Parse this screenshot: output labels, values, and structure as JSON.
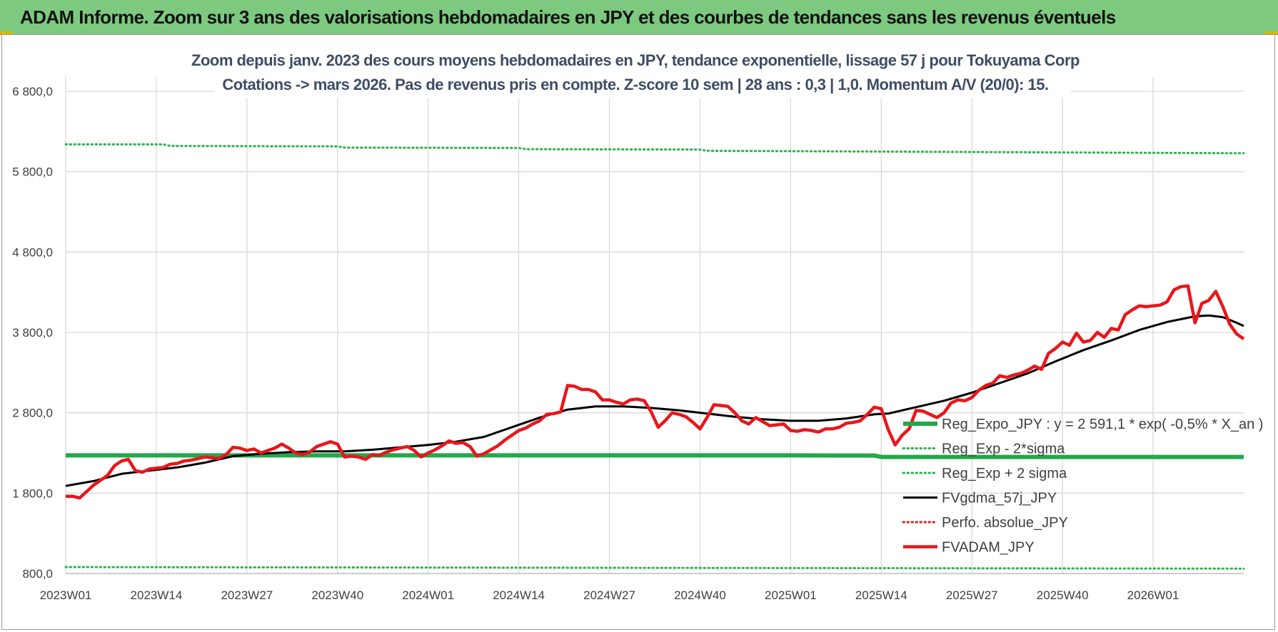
{
  "banner": {
    "title": "ADAM Informe. Zoom sur 3 ans des valorisations hebdomadaires en JPY et des courbes de tendances sans les revenus éventuels"
  },
  "colors": {
    "banner_bg": "#7cc97f",
    "reg_expo": "#22a84b",
    "sigma_bands": "#2db34f",
    "fvgdma": "#000000",
    "perfo": "#e0211c",
    "fvadam": "#e8161b",
    "title_text": "#3e4d66",
    "axis_text": "#404040",
    "grid": "#d9d9d9"
  },
  "chart_data": {
    "type": "line",
    "title": "Zoom depuis janv. 2023 des cours moyens hebdomadaires en JPY, tendance exponentielle, lissage 57 j pour Tokuyama Corp",
    "subtitle": "Cotations -> mars 2026. Pas de revenus pris en compte. Z-score 10 sem | 28 ans : 0,3 | 1,0. Momentum A/V (20/0): 15.",
    "ylim": [
      800,
      6800
    ],
    "yticks": [
      "800,0",
      "1 800,0",
      "2 800,0",
      "3 800,0",
      "4 800,0",
      "5 800,0",
      "6 800,0"
    ],
    "ytick_values": [
      800,
      1800,
      2800,
      3800,
      4800,
      5800,
      6800
    ],
    "xticks": [
      "2023W01",
      "2023W14",
      "2023W27",
      "2023W40",
      "2024W01",
      "2024W14",
      "2024W27",
      "2024W40",
      "2025W01",
      "2025W14",
      "2025W27",
      "2025W40",
      "2026W01"
    ],
    "xtick_weeks": [
      0,
      13,
      26,
      39,
      52,
      65,
      78,
      91,
      104,
      117,
      130,
      143,
      156
    ],
    "x_weeks_last": 169,
    "grid": true,
    "legend_position": "right",
    "series": [
      {
        "name": "Reg_Expo_JPY : y = 2 591,1 * exp( -0,5% *  X_an )",
        "style": "solid-thick",
        "color": "#22a84b",
        "points": [
          [
            0,
            2270
          ],
          [
            52,
            2270
          ],
          [
            104,
            2270
          ],
          [
            116,
            2268
          ],
          [
            117,
            2250
          ],
          [
            169,
            2250
          ]
        ]
      },
      {
        "name": "Reg_Exp - 2*sigma",
        "style": "dotted",
        "color": "#2db34f",
        "points": [
          [
            0,
            880
          ],
          [
            169,
            860
          ]
        ]
      },
      {
        "name": "Reg_Exp + 2 sigma",
        "style": "dotted",
        "color": "#2db34f",
        "points": [
          [
            0,
            6140
          ],
          [
            14,
            6140
          ],
          [
            15,
            6120
          ],
          [
            39,
            6115
          ],
          [
            40,
            6100
          ],
          [
            65,
            6095
          ],
          [
            66,
            6080
          ],
          [
            91,
            6075
          ],
          [
            92,
            6060
          ],
          [
            130,
            6045
          ],
          [
            169,
            6030
          ]
        ]
      },
      {
        "name": "FVgdma_57j_JPY",
        "style": "solid",
        "color": "#000000",
        "points": [
          [
            0,
            1890
          ],
          [
            4,
            1950
          ],
          [
            8,
            2040
          ],
          [
            12,
            2080
          ],
          [
            16,
            2120
          ],
          [
            20,
            2180
          ],
          [
            24,
            2260
          ],
          [
            28,
            2290
          ],
          [
            32,
            2310
          ],
          [
            36,
            2320
          ],
          [
            40,
            2320
          ],
          [
            44,
            2340
          ],
          [
            48,
            2370
          ],
          [
            52,
            2400
          ],
          [
            56,
            2440
          ],
          [
            60,
            2500
          ],
          [
            64,
            2620
          ],
          [
            68,
            2740
          ],
          [
            72,
            2840
          ],
          [
            76,
            2880
          ],
          [
            80,
            2880
          ],
          [
            84,
            2860
          ],
          [
            88,
            2830
          ],
          [
            92,
            2790
          ],
          [
            96,
            2750
          ],
          [
            100,
            2720
          ],
          [
            104,
            2700
          ],
          [
            108,
            2700
          ],
          [
            112,
            2730
          ],
          [
            116,
            2780
          ],
          [
            118,
            2790
          ],
          [
            122,
            2870
          ],
          [
            126,
            2950
          ],
          [
            130,
            3050
          ],
          [
            134,
            3170
          ],
          [
            138,
            3290
          ],
          [
            142,
            3440
          ],
          [
            146,
            3580
          ],
          [
            150,
            3700
          ],
          [
            154,
            3830
          ],
          [
            158,
            3930
          ],
          [
            162,
            4000
          ],
          [
            164,
            4010
          ],
          [
            166,
            3990
          ],
          [
            168,
            3920
          ],
          [
            169,
            3880
          ]
        ]
      },
      {
        "name": "Perfo. absolue_JPY",
        "style": "dotted",
        "color": "#e0211c",
        "points": []
      },
      {
        "name": "FVADAM_JPY",
        "style": "solid-thick",
        "color": "#e8161b",
        "points": [
          [
            0,
            1760
          ],
          [
            1,
            1760
          ],
          [
            2,
            1740
          ],
          [
            3,
            1820
          ],
          [
            4,
            1900
          ],
          [
            5,
            1960
          ],
          [
            6,
            2020
          ],
          [
            7,
            2140
          ],
          [
            8,
            2200
          ],
          [
            9,
            2220
          ],
          [
            10,
            2080
          ],
          [
            11,
            2060
          ],
          [
            12,
            2100
          ],
          [
            13,
            2110
          ],
          [
            14,
            2120
          ],
          [
            15,
            2160
          ],
          [
            16,
            2170
          ],
          [
            17,
            2200
          ],
          [
            18,
            2210
          ],
          [
            19,
            2230
          ],
          [
            20,
            2250
          ],
          [
            21,
            2240
          ],
          [
            22,
            2230
          ],
          [
            23,
            2280
          ],
          [
            24,
            2370
          ],
          [
            25,
            2360
          ],
          [
            26,
            2330
          ],
          [
            27,
            2350
          ],
          [
            28,
            2300
          ],
          [
            29,
            2330
          ],
          [
            30,
            2360
          ],
          [
            31,
            2410
          ],
          [
            32,
            2360
          ],
          [
            33,
            2300
          ],
          [
            34,
            2280
          ],
          [
            35,
            2310
          ],
          [
            36,
            2380
          ],
          [
            37,
            2410
          ],
          [
            38,
            2440
          ],
          [
            39,
            2410
          ],
          [
            40,
            2250
          ],
          [
            41,
            2260
          ],
          [
            42,
            2250
          ],
          [
            43,
            2220
          ],
          [
            44,
            2280
          ],
          [
            45,
            2270
          ],
          [
            46,
            2310
          ],
          [
            47,
            2340
          ],
          [
            48,
            2360
          ],
          [
            49,
            2380
          ],
          [
            50,
            2330
          ],
          [
            51,
            2250
          ],
          [
            52,
            2300
          ],
          [
            53,
            2340
          ],
          [
            54,
            2390
          ],
          [
            55,
            2450
          ],
          [
            56,
            2420
          ],
          [
            57,
            2430
          ],
          [
            58,
            2380
          ],
          [
            59,
            2260
          ],
          [
            60,
            2290
          ],
          [
            61,
            2340
          ],
          [
            62,
            2390
          ],
          [
            63,
            2460
          ],
          [
            64,
            2520
          ],
          [
            65,
            2580
          ],
          [
            66,
            2610
          ],
          [
            67,
            2660
          ],
          [
            68,
            2700
          ],
          [
            69,
            2780
          ],
          [
            70,
            2790
          ],
          [
            71,
            2810
          ],
          [
            72,
            3140
          ],
          [
            73,
            3130
          ],
          [
            74,
            3090
          ],
          [
            75,
            3090
          ],
          [
            76,
            3060
          ],
          [
            77,
            2960
          ],
          [
            78,
            2960
          ],
          [
            79,
            2930
          ],
          [
            80,
            2910
          ],
          [
            81,
            2960
          ],
          [
            82,
            2970
          ],
          [
            83,
            2950
          ],
          [
            84,
            2810
          ],
          [
            85,
            2620
          ],
          [
            86,
            2700
          ],
          [
            87,
            2800
          ],
          [
            88,
            2780
          ],
          [
            89,
            2750
          ],
          [
            90,
            2680
          ],
          [
            91,
            2600
          ],
          [
            92,
            2740
          ],
          [
            93,
            2900
          ],
          [
            94,
            2890
          ],
          [
            95,
            2880
          ],
          [
            96,
            2800
          ],
          [
            97,
            2700
          ],
          [
            98,
            2660
          ],
          [
            99,
            2740
          ],
          [
            100,
            2690
          ],
          [
            101,
            2640
          ],
          [
            102,
            2650
          ],
          [
            103,
            2660
          ],
          [
            104,
            2580
          ],
          [
            105,
            2570
          ],
          [
            106,
            2590
          ],
          [
            107,
            2580
          ],
          [
            108,
            2560
          ],
          [
            109,
            2600
          ],
          [
            110,
            2600
          ],
          [
            111,
            2620
          ],
          [
            112,
            2670
          ],
          [
            113,
            2680
          ],
          [
            114,
            2700
          ],
          [
            115,
            2780
          ],
          [
            116,
            2870
          ],
          [
            117,
            2850
          ],
          [
            118,
            2590
          ],
          [
            119,
            2400
          ],
          [
            120,
            2520
          ],
          [
            121,
            2600
          ],
          [
            122,
            2830
          ],
          [
            123,
            2820
          ],
          [
            124,
            2780
          ],
          [
            125,
            2740
          ],
          [
            126,
            2800
          ],
          [
            127,
            2920
          ],
          [
            128,
            2960
          ],
          [
            129,
            2950
          ],
          [
            130,
            2990
          ],
          [
            131,
            3080
          ],
          [
            132,
            3140
          ],
          [
            133,
            3170
          ],
          [
            134,
            3260
          ],
          [
            135,
            3240
          ],
          [
            136,
            3270
          ],
          [
            137,
            3290
          ],
          [
            138,
            3330
          ],
          [
            139,
            3380
          ],
          [
            140,
            3340
          ],
          [
            141,
            3540
          ],
          [
            142,
            3600
          ],
          [
            143,
            3680
          ],
          [
            144,
            3640
          ],
          [
            145,
            3790
          ],
          [
            146,
            3680
          ],
          [
            147,
            3700
          ],
          [
            148,
            3800
          ],
          [
            149,
            3740
          ],
          [
            150,
            3850
          ],
          [
            151,
            3830
          ],
          [
            152,
            4020
          ],
          [
            153,
            4080
          ],
          [
            154,
            4130
          ],
          [
            155,
            4120
          ],
          [
            156,
            4130
          ],
          [
            157,
            4140
          ],
          [
            158,
            4180
          ],
          [
            159,
            4330
          ],
          [
            160,
            4370
          ],
          [
            161,
            4380
          ],
          [
            162,
            3920
          ],
          [
            163,
            4160
          ],
          [
            164,
            4200
          ],
          [
            165,
            4310
          ],
          [
            166,
            4120
          ],
          [
            167,
            3900
          ],
          [
            168,
            3780
          ],
          [
            169,
            3720
          ]
        ]
      }
    ]
  }
}
